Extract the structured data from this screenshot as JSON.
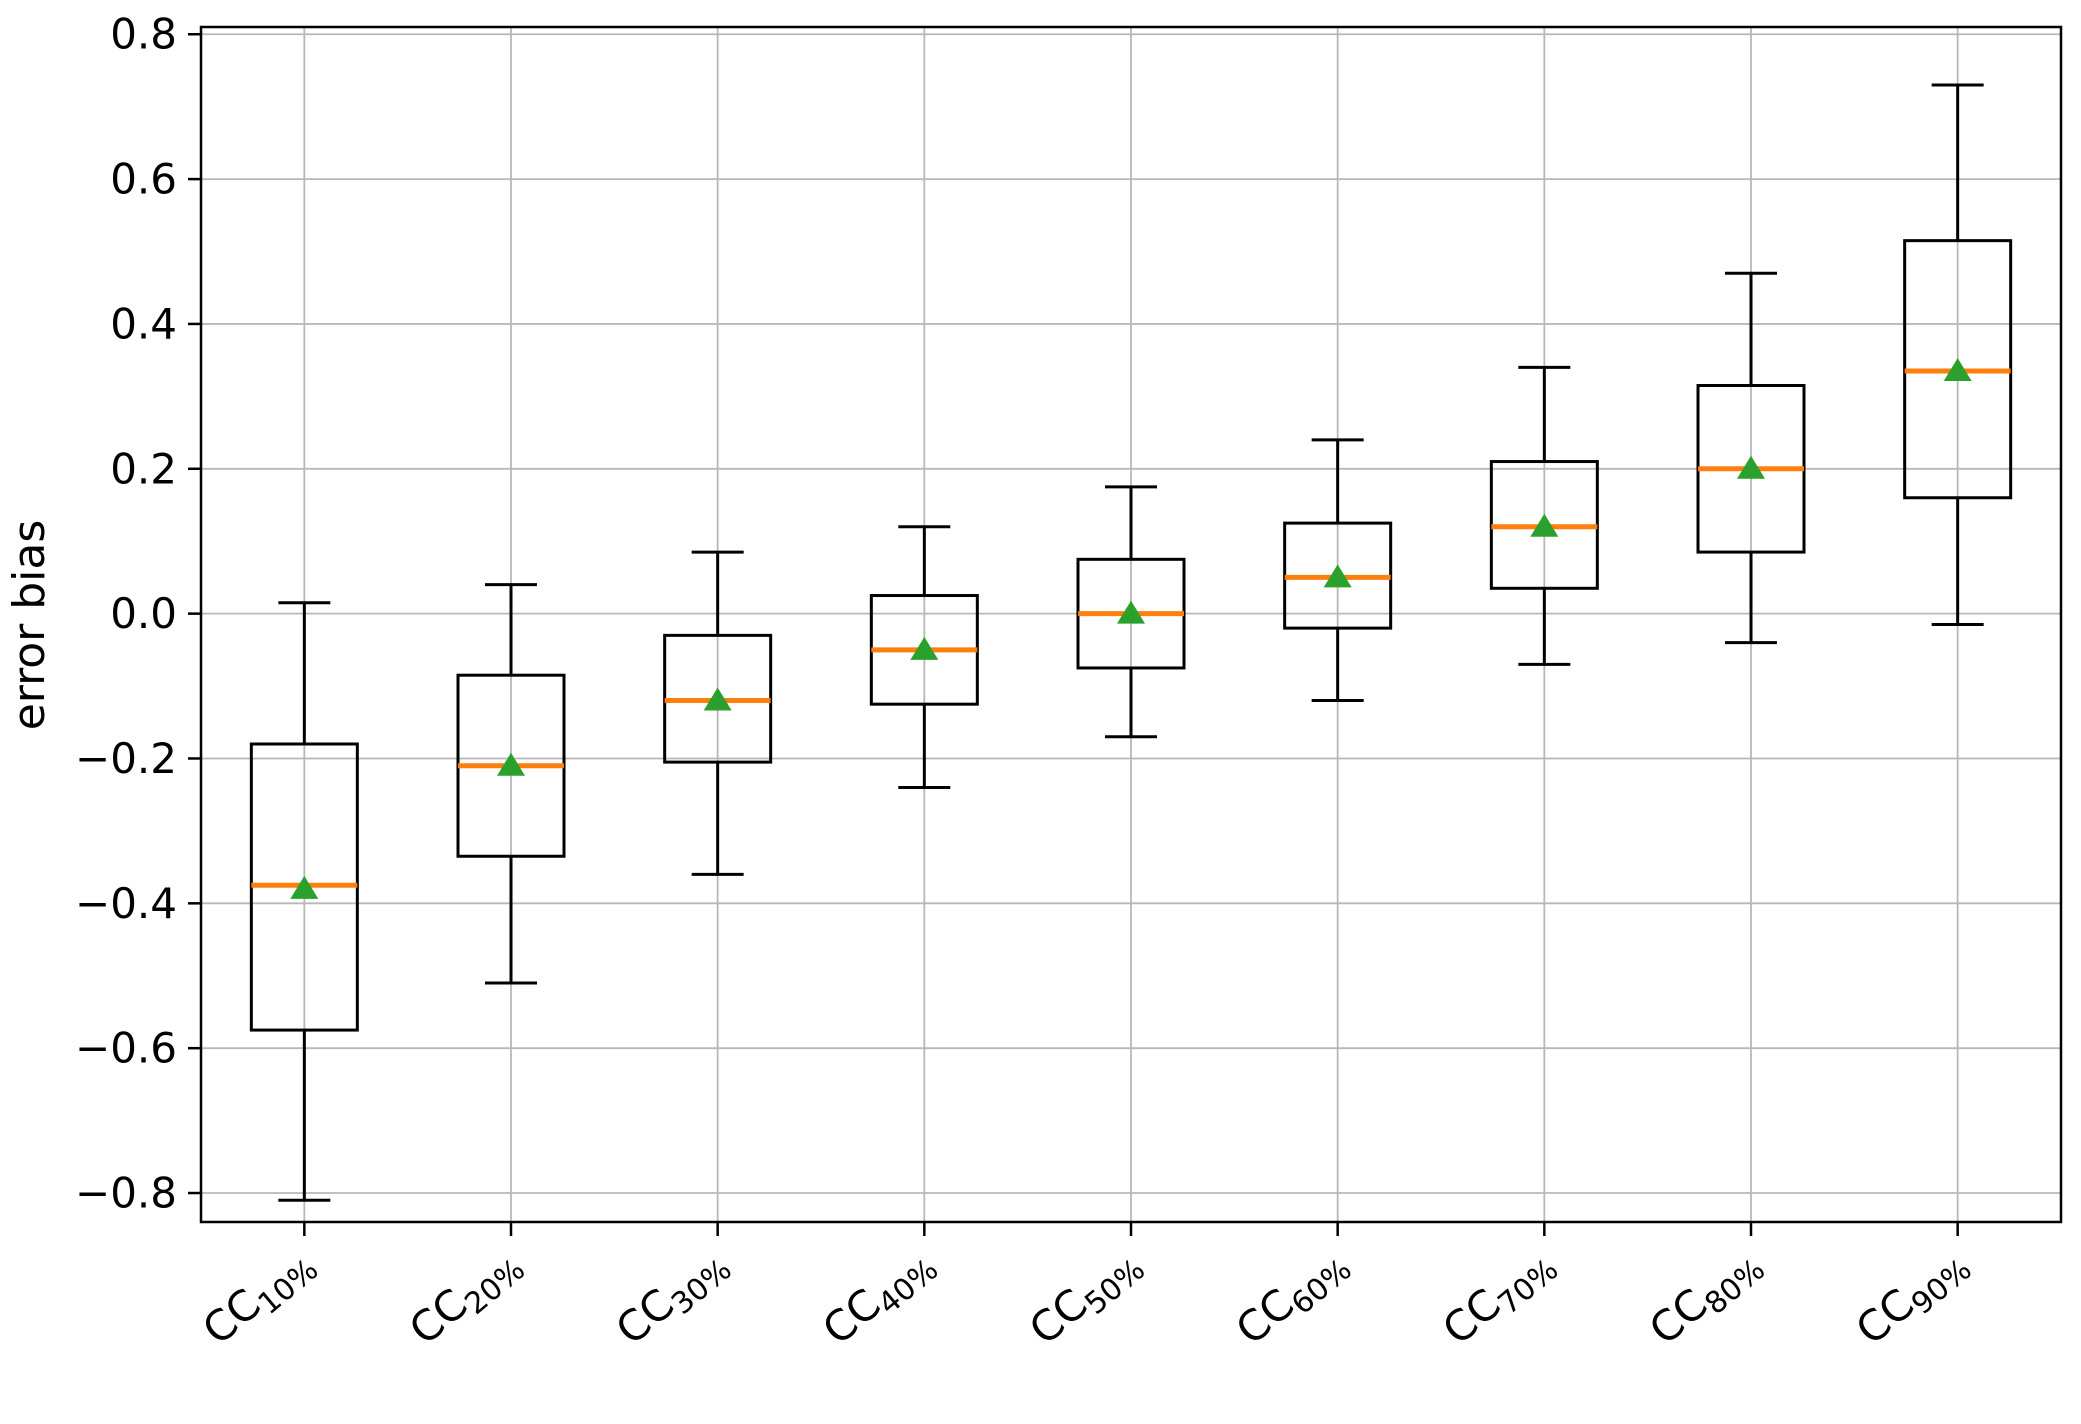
{
  "chart_data": {
    "type": "boxplot",
    "title": "",
    "xlabel": "",
    "ylabel": "error bias",
    "grid": true,
    "legend": "none",
    "ylim": [
      -0.84,
      0.81
    ],
    "yticks": [
      0.8,
      0.6,
      0.4,
      0.2,
      0.0,
      -0.2,
      -0.4,
      -0.6,
      -0.8
    ],
    "ytick_labels": [
      "0.8",
      "0.6",
      "0.4",
      "0.2",
      "0.0",
      "−0.2",
      "−0.4",
      "−0.6",
      "−0.8"
    ],
    "categories": [
      {
        "label": "CC10%",
        "base": "CC",
        "subscript": "10%"
      },
      {
        "label": "CC20%",
        "base": "CC",
        "subscript": "20%"
      },
      {
        "label": "CC30%",
        "base": "CC",
        "subscript": "30%"
      },
      {
        "label": "CC40%",
        "base": "CC",
        "subscript": "40%"
      },
      {
        "label": "CC50%",
        "base": "CC",
        "subscript": "50%"
      },
      {
        "label": "CC60%",
        "base": "CC",
        "subscript": "60%"
      },
      {
        "label": "CC70%",
        "base": "CC",
        "subscript": "70%"
      },
      {
        "label": "CC80%",
        "base": "CC",
        "subscript": "80%"
      },
      {
        "label": "CC90%",
        "base": "CC",
        "subscript": "90%"
      }
    ],
    "series": [
      {
        "category": "CC10%",
        "whisker_low": -0.81,
        "q1": -0.575,
        "median": -0.375,
        "mean": -0.38,
        "q3": -0.18,
        "whisker_high": 0.015
      },
      {
        "category": "CC20%",
        "whisker_low": -0.51,
        "q1": -0.335,
        "median": -0.21,
        "mean": -0.21,
        "q3": -0.085,
        "whisker_high": 0.04
      },
      {
        "category": "CC30%",
        "whisker_low": -0.36,
        "q1": -0.205,
        "median": -0.12,
        "mean": -0.12,
        "q3": -0.03,
        "whisker_high": 0.085
      },
      {
        "category": "CC40%",
        "whisker_low": -0.24,
        "q1": -0.125,
        "median": -0.05,
        "mean": -0.05,
        "q3": 0.025,
        "whisker_high": 0.12
      },
      {
        "category": "CC50%",
        "whisker_low": -0.17,
        "q1": -0.075,
        "median": 0.0,
        "mean": 0.0,
        "q3": 0.075,
        "whisker_high": 0.175
      },
      {
        "category": "CC60%",
        "whisker_low": -0.12,
        "q1": -0.02,
        "median": 0.05,
        "mean": 0.05,
        "q3": 0.125,
        "whisker_high": 0.24
      },
      {
        "category": "CC70%",
        "whisker_low": -0.07,
        "q1": 0.035,
        "median": 0.12,
        "mean": 0.12,
        "q3": 0.21,
        "whisker_high": 0.34
      },
      {
        "category": "CC80%",
        "whisker_low": -0.04,
        "q1": 0.085,
        "median": 0.2,
        "mean": 0.2,
        "q3": 0.315,
        "whisker_high": 0.47
      },
      {
        "category": "CC90%",
        "whisker_low": -0.015,
        "q1": 0.16,
        "median": 0.335,
        "mean": 0.335,
        "q3": 0.515,
        "whisker_high": 0.73
      }
    ],
    "marker": "triangle-up",
    "colors": {
      "median": "#ff7f0e",
      "mean_marker": "#2ca02c",
      "box_edge": "#000000",
      "whisker": "#000000",
      "grid": "#b8b8b8",
      "background": "#ffffff",
      "text": "#000000"
    }
  }
}
